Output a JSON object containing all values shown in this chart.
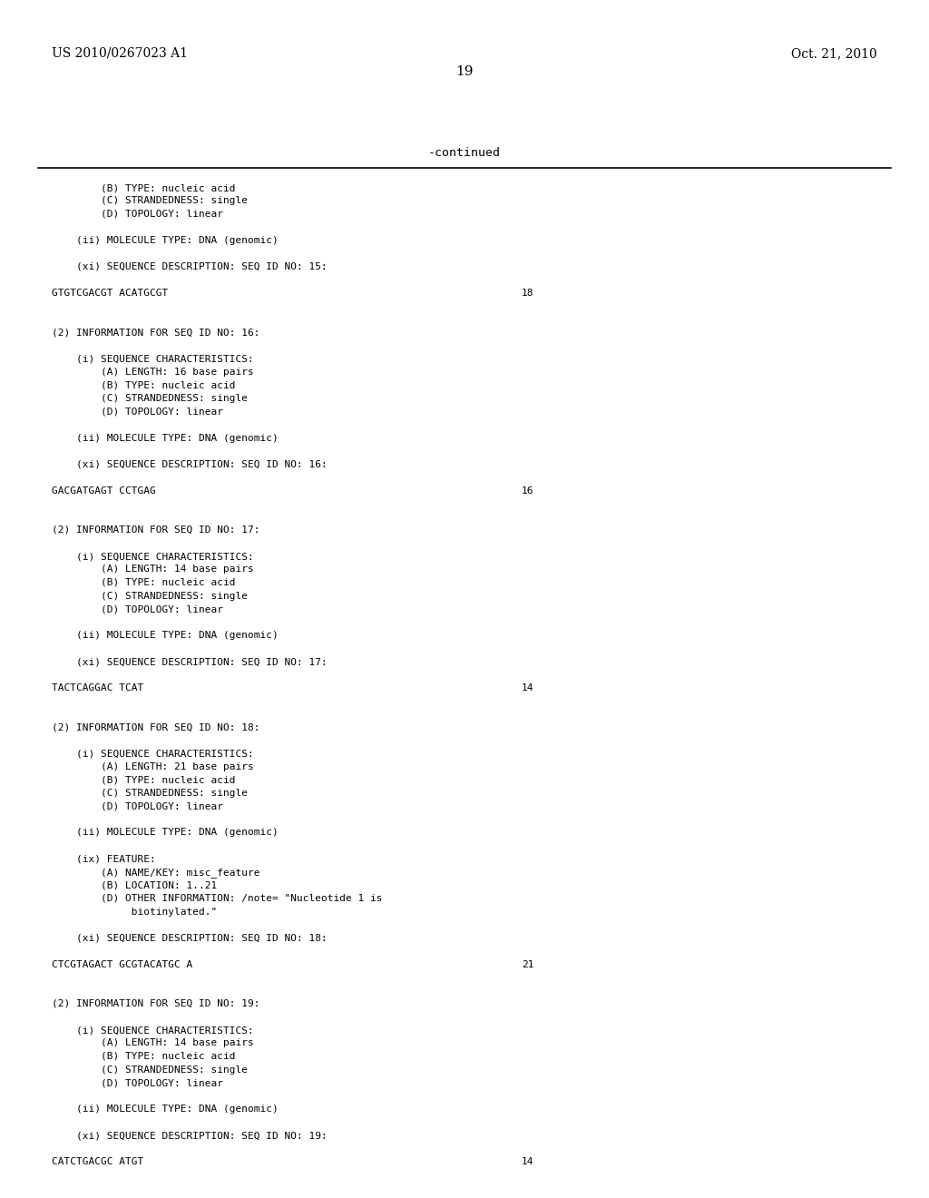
{
  "header_left": "US 2010/0267023 A1",
  "header_right": "Oct. 21, 2010",
  "page_number": "19",
  "continued_label": "-continued",
  "background_color": "#ffffff",
  "text_color": "#000000",
  "line_color": "#000000",
  "header_fontsize": 10,
  "mono_fontsize": 8.0,
  "page_fontsize": 11,
  "fig_width": 10.24,
  "fig_height": 13.2,
  "dpi": 100,
  "content_lines": [
    {
      "text": "        (B) TYPE: nucleic acid",
      "indent": 0,
      "blank_after": false
    },
    {
      "text": "        (C) STRANDEDNESS: single",
      "indent": 0,
      "blank_after": false
    },
    {
      "text": "        (D) TOPOLOGY: linear",
      "indent": 0,
      "blank_after": true
    },
    {
      "text": "    (ii) MOLECULE TYPE: DNA (genomic)",
      "indent": 0,
      "blank_after": true
    },
    {
      "text": "    (xi) SEQUENCE DESCRIPTION: SEQ ID NO: 15:",
      "indent": 0,
      "blank_after": true
    },
    {
      "text": "GTGTCGACGT ACATGCGT",
      "indent": 0,
      "blank_after": true,
      "right_num": "18"
    },
    {
      "text": "",
      "indent": 0,
      "blank_after": false
    },
    {
      "text": "(2) INFORMATION FOR SEQ ID NO: 16:",
      "indent": 0,
      "blank_after": true
    },
    {
      "text": "    (i) SEQUENCE CHARACTERISTICS:",
      "indent": 0,
      "blank_after": false
    },
    {
      "text": "        (A) LENGTH: 16 base pairs",
      "indent": 0,
      "blank_after": false
    },
    {
      "text": "        (B) TYPE: nucleic acid",
      "indent": 0,
      "blank_after": false
    },
    {
      "text": "        (C) STRANDEDNESS: single",
      "indent": 0,
      "blank_after": false
    },
    {
      "text": "        (D) TOPOLOGY: linear",
      "indent": 0,
      "blank_after": true
    },
    {
      "text": "    (ii) MOLECULE TYPE: DNA (genomic)",
      "indent": 0,
      "blank_after": true
    },
    {
      "text": "    (xi) SEQUENCE DESCRIPTION: SEQ ID NO: 16:",
      "indent": 0,
      "blank_after": true
    },
    {
      "text": "GACGATGAGT CCTGAG",
      "indent": 0,
      "blank_after": true,
      "right_num": "16"
    },
    {
      "text": "",
      "indent": 0,
      "blank_after": false
    },
    {
      "text": "(2) INFORMATION FOR SEQ ID NO: 17:",
      "indent": 0,
      "blank_after": true
    },
    {
      "text": "    (i) SEQUENCE CHARACTERISTICS:",
      "indent": 0,
      "blank_after": false
    },
    {
      "text": "        (A) LENGTH: 14 base pairs",
      "indent": 0,
      "blank_after": false
    },
    {
      "text": "        (B) TYPE: nucleic acid",
      "indent": 0,
      "blank_after": false
    },
    {
      "text": "        (C) STRANDEDNESS: single",
      "indent": 0,
      "blank_after": false
    },
    {
      "text": "        (D) TOPOLOGY: linear",
      "indent": 0,
      "blank_after": true
    },
    {
      "text": "    (ii) MOLECULE TYPE: DNA (genomic)",
      "indent": 0,
      "blank_after": true
    },
    {
      "text": "    (xi) SEQUENCE DESCRIPTION: SEQ ID NO: 17:",
      "indent": 0,
      "blank_after": true
    },
    {
      "text": "TACTCAGGAC TCAT",
      "indent": 0,
      "blank_after": true,
      "right_num": "14"
    },
    {
      "text": "",
      "indent": 0,
      "blank_after": false
    },
    {
      "text": "(2) INFORMATION FOR SEQ ID NO: 18:",
      "indent": 0,
      "blank_after": true
    },
    {
      "text": "    (i) SEQUENCE CHARACTERISTICS:",
      "indent": 0,
      "blank_after": false
    },
    {
      "text": "        (A) LENGTH: 21 base pairs",
      "indent": 0,
      "blank_after": false
    },
    {
      "text": "        (B) TYPE: nucleic acid",
      "indent": 0,
      "blank_after": false
    },
    {
      "text": "        (C) STRANDEDNESS: single",
      "indent": 0,
      "blank_after": false
    },
    {
      "text": "        (D) TOPOLOGY: linear",
      "indent": 0,
      "blank_after": true
    },
    {
      "text": "    (ii) MOLECULE TYPE: DNA (genomic)",
      "indent": 0,
      "blank_after": true
    },
    {
      "text": "    (ix) FEATURE:",
      "indent": 0,
      "blank_after": false
    },
    {
      "text": "        (A) NAME/KEY: misc_feature",
      "indent": 0,
      "blank_after": false
    },
    {
      "text": "        (B) LOCATION: 1..21",
      "indent": 0,
      "blank_after": false
    },
    {
      "text": "        (D) OTHER INFORMATION: /note= \"Nucleotide 1 is",
      "indent": 0,
      "blank_after": false
    },
    {
      "text": "             biotinylated.\"",
      "indent": 0,
      "blank_after": true
    },
    {
      "text": "    (xi) SEQUENCE DESCRIPTION: SEQ ID NO: 18:",
      "indent": 0,
      "blank_after": true
    },
    {
      "text": "CTCGTAGACT GCGTACATGC A",
      "indent": 0,
      "blank_after": true,
      "right_num": "21"
    },
    {
      "text": "",
      "indent": 0,
      "blank_after": false
    },
    {
      "text": "(2) INFORMATION FOR SEQ ID NO: 19:",
      "indent": 0,
      "blank_after": true
    },
    {
      "text": "    (i) SEQUENCE CHARACTERISTICS:",
      "indent": 0,
      "blank_after": false
    },
    {
      "text": "        (A) LENGTH: 14 base pairs",
      "indent": 0,
      "blank_after": false
    },
    {
      "text": "        (B) TYPE: nucleic acid",
      "indent": 0,
      "blank_after": false
    },
    {
      "text": "        (C) STRANDEDNESS: single",
      "indent": 0,
      "blank_after": false
    },
    {
      "text": "        (D) TOPOLOGY: linear",
      "indent": 0,
      "blank_after": true
    },
    {
      "text": "    (ii) MOLECULE TYPE: DNA (genomic)",
      "indent": 0,
      "blank_after": true
    },
    {
      "text": "    (xi) SEQUENCE DESCRIPTION: SEQ ID NO: 19:",
      "indent": 0,
      "blank_after": true
    },
    {
      "text": "CATCTGACGC ATGT",
      "indent": 0,
      "blank_after": false,
      "right_num": "14"
    }
  ]
}
